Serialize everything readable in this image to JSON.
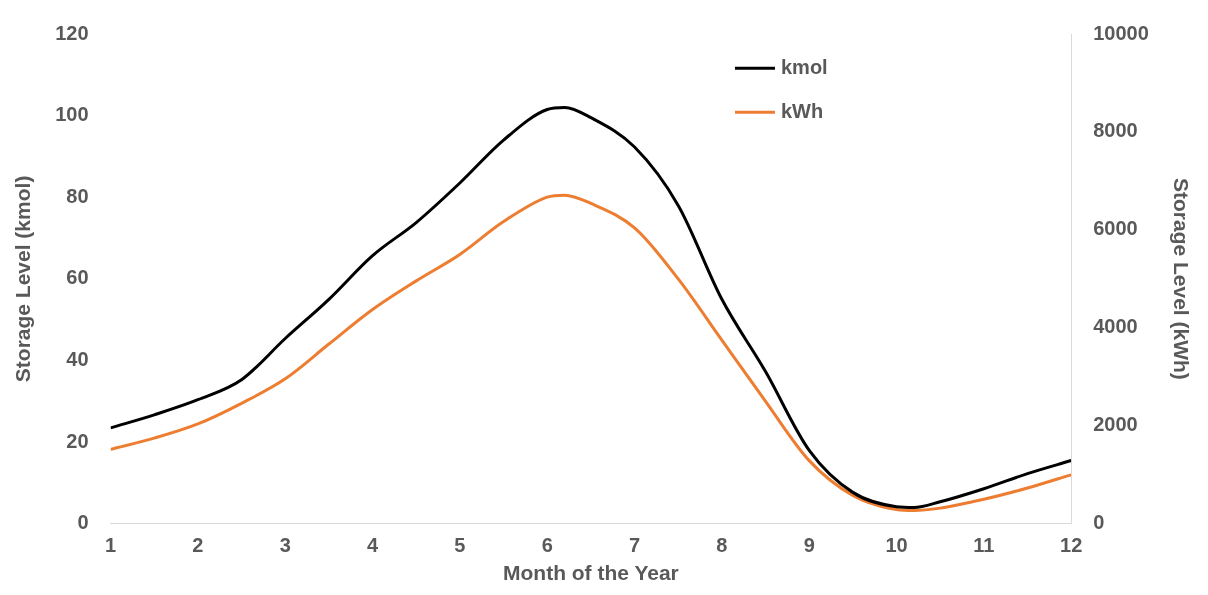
{
  "chart_data": {
    "type": "line",
    "xlabel": "Month of the Year",
    "ylabel": "Storage Level (kmol)",
    "y2label": "Storage Level (kWh)",
    "xlim": [
      1,
      12
    ],
    "xticks": [
      1,
      2,
      3,
      4,
      5,
      6,
      7,
      8,
      9,
      10,
      11,
      12
    ],
    "ylim": [
      0,
      120
    ],
    "yticks": [
      0,
      20,
      40,
      60,
      80,
      100,
      120
    ],
    "y2lim": [
      0,
      10000
    ],
    "y2ticks": [
      0,
      2000,
      4000,
      6000,
      8000,
      10000
    ],
    "legend": "top right",
    "grid": false,
    "marker": "none",
    "line_style": "solid",
    "series": [
      {
        "name": "kmol",
        "color": "#000000",
        "x": [
          1,
          1.5,
          2,
          2.5,
          3,
          3.5,
          4,
          4.5,
          5,
          5.5,
          6,
          6.2,
          6.5,
          7,
          7.5,
          8,
          8.5,
          9,
          9.5,
          10,
          10.2,
          10.5,
          11,
          11.5,
          12
        ],
        "values": [
          23.5,
          26.7,
          30.4,
          35.3,
          45.4,
          55,
          65.7,
          73.8,
          83.5,
          94,
          101.5,
          102,
          99.5,
          92.3,
          78,
          55,
          37.3,
          18,
          7.7,
          4.2,
          4,
          5.4,
          8.6,
          12.3,
          15.5
        ]
      },
      {
        "name": "kWh",
        "color": "#ed7d31",
        "axis": "y2",
        "x": [
          1,
          1.5,
          2,
          2.5,
          3,
          3.5,
          4,
          4.5,
          5,
          5.5,
          6,
          6.2,
          6.5,
          7,
          7.5,
          8,
          8.5,
          9,
          9.5,
          10,
          10.2,
          10.5,
          11,
          11.5,
          12
        ],
        "values": [
          1520,
          1750,
          2040,
          2460,
          2960,
          3670,
          4375,
          4960,
          5500,
          6170,
          6670,
          6710,
          6540,
          6040,
          5000,
          3750,
          2500,
          1290,
          580,
          290,
          270,
          320,
          500,
          730,
          1000
        ]
      }
    ]
  }
}
